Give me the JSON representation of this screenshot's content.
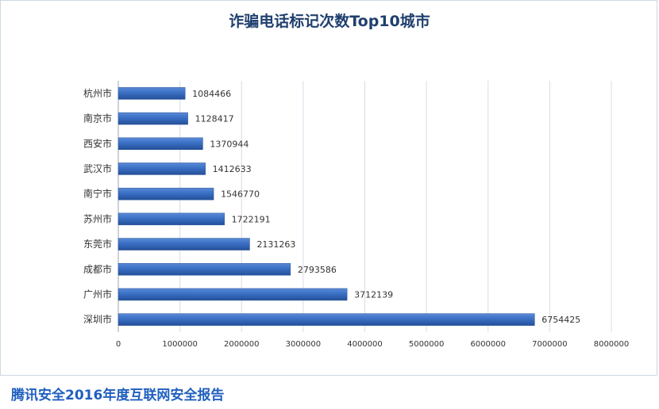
{
  "chart_data": {
    "type": "bar",
    "orientation": "horizontal",
    "title": "诈骗电话标记次数Top10城市",
    "categories": [
      "杭州市",
      "南京市",
      "西安市",
      "武汉市",
      "南宁市",
      "苏州市",
      "东莞市",
      "成都市",
      "广州市",
      "深圳市"
    ],
    "values": [
      1084466,
      1128417,
      1370944,
      1412633,
      1546770,
      1722191,
      2131263,
      2793586,
      3712139,
      6754425
    ],
    "xlim": [
      0,
      8000000
    ],
    "xticks": [
      "0",
      "1000000",
      "2000000",
      "3000000",
      "4000000",
      "5000000",
      "6000000",
      "7000000",
      "8000000"
    ],
    "grid": "vertical",
    "legend": "none",
    "bar_color": "#3366b8"
  },
  "footer": {
    "caption": "腾讯安全2016年度互联网安全报告"
  }
}
